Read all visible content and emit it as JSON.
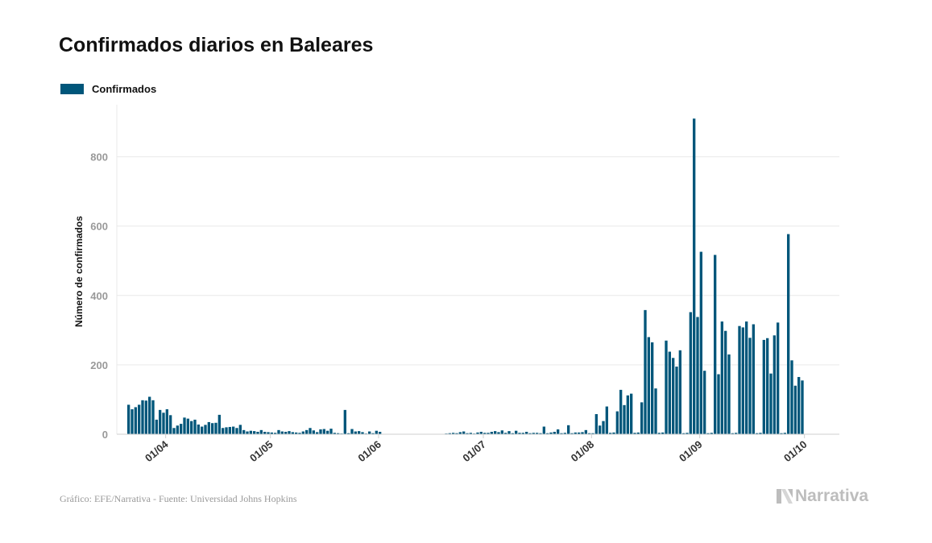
{
  "chart_data": {
    "type": "bar",
    "title": "Confirmados diarios en Baleares",
    "ylabel": "Número de confirmados",
    "xlabel": "",
    "ylim": [
      0,
      950
    ],
    "yticks": [
      0,
      200,
      400,
      600,
      800
    ],
    "xtick_labels": [
      "01/04",
      "01/05",
      "01/06",
      "01/07",
      "01/08",
      "01/09",
      "01/10"
    ],
    "xtick_dates": [
      "2020-04-01",
      "2020-05-01",
      "2020-06-01",
      "2020-07-01",
      "2020-08-01",
      "2020-09-01",
      "2020-10-01"
    ],
    "x_range": [
      "2020-03-18",
      "2020-10-11"
    ],
    "grid": true,
    "legend": "top-left",
    "series": [
      {
        "name": "Confirmados",
        "color": "#00567a",
        "start_date": "2020-03-21",
        "values": [
          85,
          72,
          78,
          85,
          98,
          97,
          108,
          98,
          42,
          70,
          62,
          72,
          55,
          18,
          25,
          30,
          48,
          45,
          38,
          42,
          28,
          22,
          27,
          35,
          32,
          33,
          56,
          18,
          20,
          21,
          22,
          18,
          27,
          12,
          8,
          10,
          9,
          7,
          12,
          7,
          6,
          5,
          4,
          12,
          8,
          7,
          9,
          6,
          5,
          4,
          8,
          12,
          18,
          11,
          6,
          14,
          15,
          10,
          16,
          4,
          3,
          2,
          70,
          3,
          15,
          8,
          9,
          6,
          2,
          8,
          3,
          10,
          7,
          0,
          0,
          0,
          0,
          0,
          0,
          0,
          0,
          0,
          0,
          0,
          0,
          0,
          0,
          0,
          0,
          0,
          0,
          2,
          3,
          4,
          3,
          6,
          8,
          3,
          4,
          2,
          5,
          7,
          4,
          4,
          7,
          9,
          6,
          11,
          4,
          9,
          3,
          10,
          4,
          4,
          7,
          3,
          4,
          4,
          3,
          22,
          3,
          5,
          7,
          14,
          3,
          4,
          26,
          3,
          5,
          5,
          6,
          12,
          3,
          3,
          58,
          25,
          38,
          80,
          4,
          5,
          66,
          128,
          84,
          112,
          117,
          4,
          5,
          92,
          358,
          280,
          265,
          132,
          4,
          5,
          270,
          238,
          220,
          195,
          242,
          3,
          4,
          352,
          910,
          338,
          526,
          183,
          3,
          4,
          517,
          173,
          325,
          298,
          230,
          3,
          4,
          312,
          308,
          325,
          278,
          317,
          3,
          4,
          272,
          277,
          175,
          285,
          322,
          3,
          4,
          577,
          213,
          140,
          165,
          155
        ]
      }
    ]
  },
  "footer": {
    "source": "Gráfico: EFE/Narrativa - Fuente: Universidad Johns Hopkins",
    "brand": "Narrativa"
  }
}
